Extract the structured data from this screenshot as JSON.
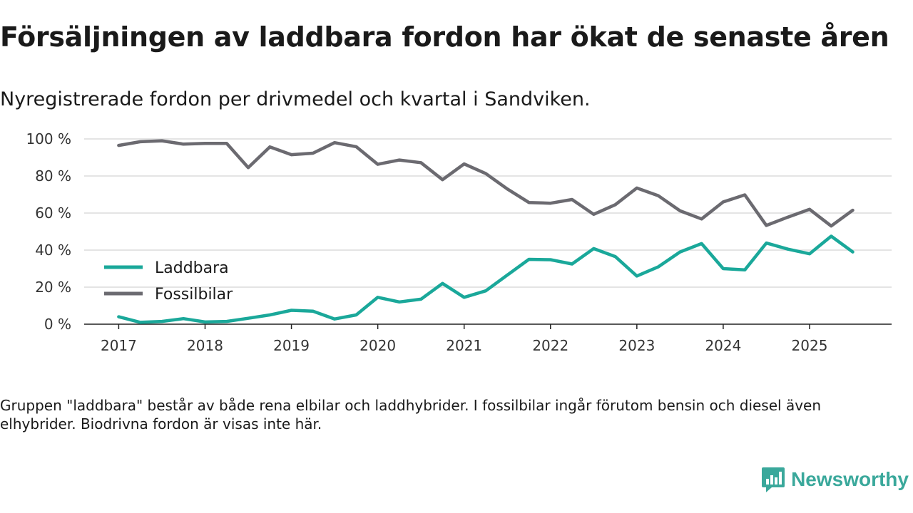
{
  "header": {
    "title": "Försäljningen av laddbara fordon har ökat de senaste åren",
    "subtitle": "Nyregistrerade fordon per drivmedel och kvartal i Sandviken."
  },
  "footer": {
    "note": "Gruppen \"laddbara\" består av både rena elbilar och laddhybrider. I fossilbilar ingår förutom bensin och diesel även elhybrider. Biodrivna fordon är visas inte här.",
    "brand": "Newsworthy",
    "brand_icon": "newsworthy-logo-icon",
    "brand_color": "#3aa89b"
  },
  "chart_data": {
    "type": "line",
    "title": "Försäljningen av laddbara fordon har ökat de senaste åren",
    "subtitle": "Nyregistrerade fordon per drivmedel och kvartal i Sandviken.",
    "xlabel": "",
    "ylabel": "",
    "x_start": 2017.0,
    "x_step": 0.25,
    "xlim": [
      2016.6,
      2025.95
    ],
    "ylim": [
      0,
      100
    ],
    "y_ticks": [
      0,
      20,
      40,
      60,
      80,
      100
    ],
    "y_tick_labels": [
      "0 %",
      "20 %",
      "40 %",
      "60 %",
      "80 %",
      "100 %"
    ],
    "x_ticks": [
      2017,
      2018,
      2019,
      2020,
      2021,
      2022,
      2023,
      2024,
      2025
    ],
    "x_tick_labels": [
      "2017",
      "2018",
      "2019",
      "2020",
      "2021",
      "2022",
      "2023",
      "2024",
      "2025"
    ],
    "grid": true,
    "legend_position": "middle-left",
    "series": [
      {
        "name": "Laddbara",
        "color": "#1aa89a",
        "values": [
          4,
          1,
          1.5,
          3,
          1.2,
          1.5,
          3.2,
          5,
          7.5,
          7,
          2.8,
          5,
          14.5,
          12,
          13.5,
          22,
          14.5,
          18,
          26.5,
          35,
          34.8,
          32.5,
          40.8,
          36.5,
          26,
          31,
          39,
          43.5,
          30,
          29.3,
          43.8,
          40.5,
          38,
          47.5,
          39
        ]
      },
      {
        "name": "Fossilbilar",
        "color": "#6b6a70",
        "values": [
          96.5,
          98.5,
          99,
          97.2,
          97.6,
          97.6,
          84.5,
          95.7,
          91.5,
          92.3,
          98,
          95.8,
          86.3,
          88.6,
          87.2,
          78,
          86.5,
          81.3,
          73,
          65.7,
          65.3,
          67.3,
          59.3,
          64.5,
          73.5,
          69.3,
          61.2,
          56.8,
          66,
          69.8,
          53.3,
          57.8,
          62,
          53,
          61.5
        ]
      }
    ]
  }
}
